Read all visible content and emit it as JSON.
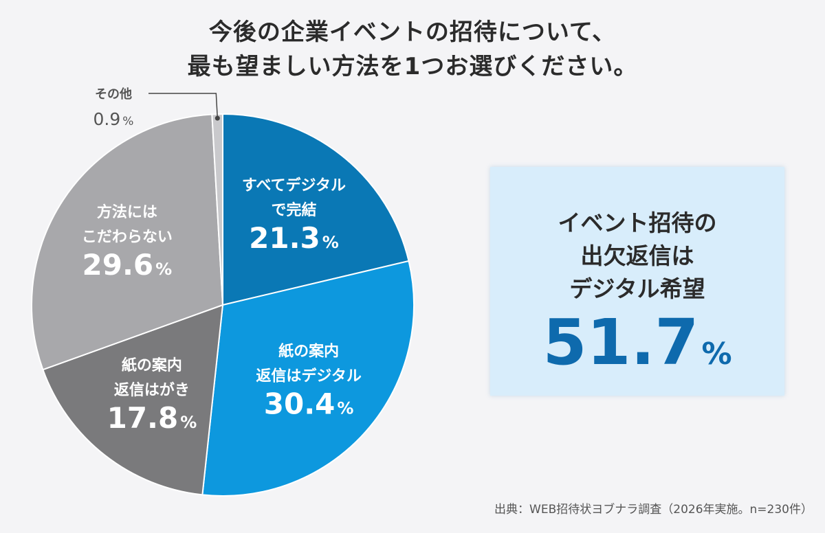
{
  "title": {
    "line1": "今後の企業イベントの招待について、",
    "line2": "最も望ましい方法を1つお選びください。"
  },
  "chart_data": {
    "type": "pie",
    "unit": "%",
    "slices": [
      {
        "label_lines": [
          "すべてデジタル",
          "で完結"
        ],
        "value": 21.3,
        "color": "#0a78b5"
      },
      {
        "label_lines": [
          "紙の案内",
          "返信はデジタル"
        ],
        "value": 30.4,
        "color": "#0d98de"
      },
      {
        "label_lines": [
          "紙の案内",
          "返信はがき"
        ],
        "value": 17.8,
        "color": "#7a7a7c"
      },
      {
        "label_lines": [
          "方法には",
          "こだわらない"
        ],
        "value": 29.6,
        "color": "#a8a8ab"
      },
      {
        "label_lines": [
          "その他"
        ],
        "value": 0.9,
        "color": "#c9c9cc",
        "label_outside": true
      }
    ]
  },
  "highlight": {
    "lines": [
      "イベント招待の",
      "出欠返信は",
      "デジタル希望"
    ],
    "value": "51.7",
    "unit": "%",
    "color": "#0e6aad"
  },
  "source": "出典：WEB招待状ヨブナラ調査（2026年実施。n=230件）"
}
